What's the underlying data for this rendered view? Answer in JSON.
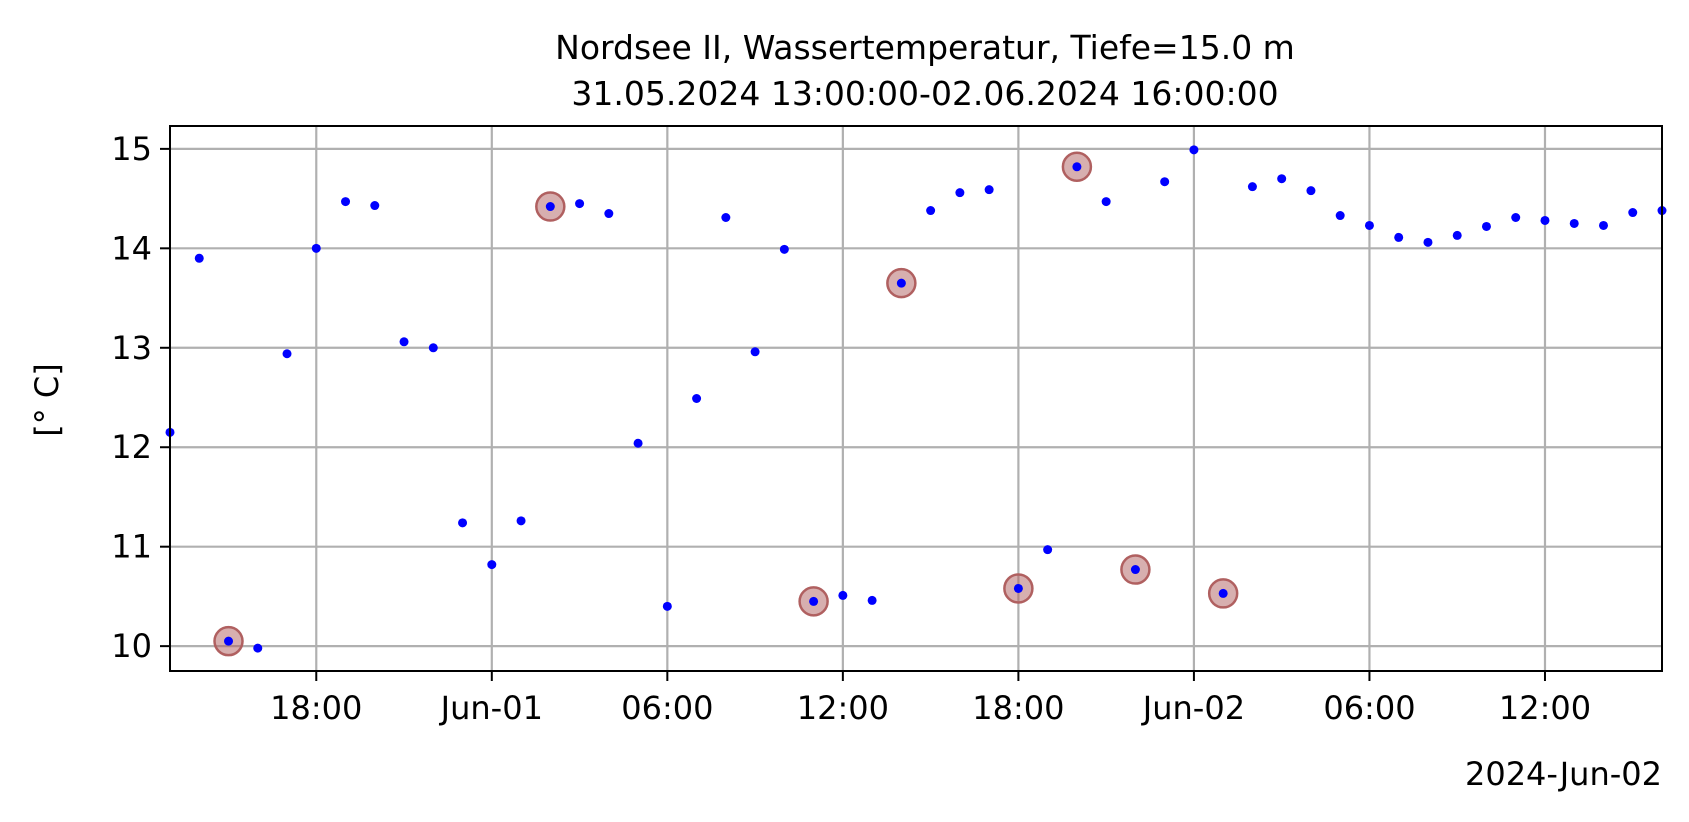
{
  "chart_data": {
    "type": "scatter",
    "title": "Nordsee II, Wassertemperatur, Tiefe=15.0 m",
    "subtitle": "31.05.2024 13:00:00-02.06.2024 16:00:00",
    "ylabel": "[° C]",
    "xlabel_offset": "2024-Jun-02",
    "xlim": [
      "2024-05-31 13:00",
      "2024-06-02 16:00"
    ],
    "ylim": [
      9.75,
      15.23
    ],
    "grid": true,
    "marker_color": "#0000ff",
    "highlight_color": "#b06060",
    "x_ticks": [
      {
        "t": "2024-05-31 18:00",
        "label": "18:00"
      },
      {
        "t": "2024-06-01 00:00",
        "label": "Jun-01"
      },
      {
        "t": "2024-06-01 06:00",
        "label": "06:00"
      },
      {
        "t": "2024-06-01 12:00",
        "label": "12:00"
      },
      {
        "t": "2024-06-01 18:00",
        "label": "18:00"
      },
      {
        "t": "2024-06-02 00:00",
        "label": "Jun-02"
      },
      {
        "t": "2024-06-02 06:00",
        "label": "06:00"
      },
      {
        "t": "2024-06-02 12:00",
        "label": "12:00"
      }
    ],
    "y_ticks": [
      10,
      11,
      12,
      13,
      14,
      15
    ],
    "points": [
      {
        "t": "2024-05-31 13:00",
        "y": 12.15
      },
      {
        "t": "2024-05-31 14:00",
        "y": 13.9
      },
      {
        "t": "2024-05-31 15:00",
        "y": 10.05,
        "flagged": true
      },
      {
        "t": "2024-05-31 16:00",
        "y": 9.98
      },
      {
        "t": "2024-05-31 17:00",
        "y": 12.94
      },
      {
        "t": "2024-05-31 18:00",
        "y": 14.0
      },
      {
        "t": "2024-05-31 19:00",
        "y": 14.47
      },
      {
        "t": "2024-05-31 20:00",
        "y": 14.43
      },
      {
        "t": "2024-05-31 21:00",
        "y": 13.06
      },
      {
        "t": "2024-05-31 22:00",
        "y": 13.0
      },
      {
        "t": "2024-05-31 23:00",
        "y": 11.24
      },
      {
        "t": "2024-06-01 00:00",
        "y": 10.82
      },
      {
        "t": "2024-06-01 01:00",
        "y": 11.26
      },
      {
        "t": "2024-06-01 02:00",
        "y": 14.42,
        "flagged": true
      },
      {
        "t": "2024-06-01 03:00",
        "y": 14.45
      },
      {
        "t": "2024-06-01 04:00",
        "y": 14.35
      },
      {
        "t": "2024-06-01 05:00",
        "y": 12.04
      },
      {
        "t": "2024-06-01 06:00",
        "y": 10.4
      },
      {
        "t": "2024-06-01 07:00",
        "y": 12.49
      },
      {
        "t": "2024-06-01 08:00",
        "y": 14.31
      },
      {
        "t": "2024-06-01 09:00",
        "y": 12.96
      },
      {
        "t": "2024-06-01 10:00",
        "y": 13.99
      },
      {
        "t": "2024-06-01 11:00",
        "y": 10.45,
        "flagged": true
      },
      {
        "t": "2024-06-01 12:00",
        "y": 10.51
      },
      {
        "t": "2024-06-01 13:00",
        "y": 10.46
      },
      {
        "t": "2024-06-01 14:00",
        "y": 13.65,
        "flagged": true
      },
      {
        "t": "2024-06-01 15:00",
        "y": 14.38
      },
      {
        "t": "2024-06-01 16:00",
        "y": 14.56
      },
      {
        "t": "2024-06-01 17:00",
        "y": 14.59
      },
      {
        "t": "2024-06-01 18:00",
        "y": 10.58,
        "flagged": true
      },
      {
        "t": "2024-06-01 19:00",
        "y": 10.97
      },
      {
        "t": "2024-06-01 20:00",
        "y": 14.82,
        "flagged": true
      },
      {
        "t": "2024-06-01 21:00",
        "y": 14.47
      },
      {
        "t": "2024-06-01 22:00",
        "y": 10.77,
        "flagged": true
      },
      {
        "t": "2024-06-01 23:00",
        "y": 14.67
      },
      {
        "t": "2024-06-02 00:00",
        "y": 14.99
      },
      {
        "t": "2024-06-02 01:00",
        "y": 10.53,
        "flagged": true
      },
      {
        "t": "2024-06-02 02:00",
        "y": 14.62
      },
      {
        "t": "2024-06-02 03:00",
        "y": 14.7
      },
      {
        "t": "2024-06-02 04:00",
        "y": 14.58
      },
      {
        "t": "2024-06-02 05:00",
        "y": 14.33
      },
      {
        "t": "2024-06-02 06:00",
        "y": 14.23
      },
      {
        "t": "2024-06-02 07:00",
        "y": 14.11
      },
      {
        "t": "2024-06-02 08:00",
        "y": 14.06
      },
      {
        "t": "2024-06-02 09:00",
        "y": 14.13
      },
      {
        "t": "2024-06-02 10:00",
        "y": 14.22
      },
      {
        "t": "2024-06-02 11:00",
        "y": 14.31
      },
      {
        "t": "2024-06-02 12:00",
        "y": 14.28
      },
      {
        "t": "2024-06-02 13:00",
        "y": 14.25
      },
      {
        "t": "2024-06-02 14:00",
        "y": 14.23
      },
      {
        "t": "2024-06-02 15:00",
        "y": 14.36
      },
      {
        "t": "2024-06-02 16:00",
        "y": 14.38
      }
    ]
  }
}
